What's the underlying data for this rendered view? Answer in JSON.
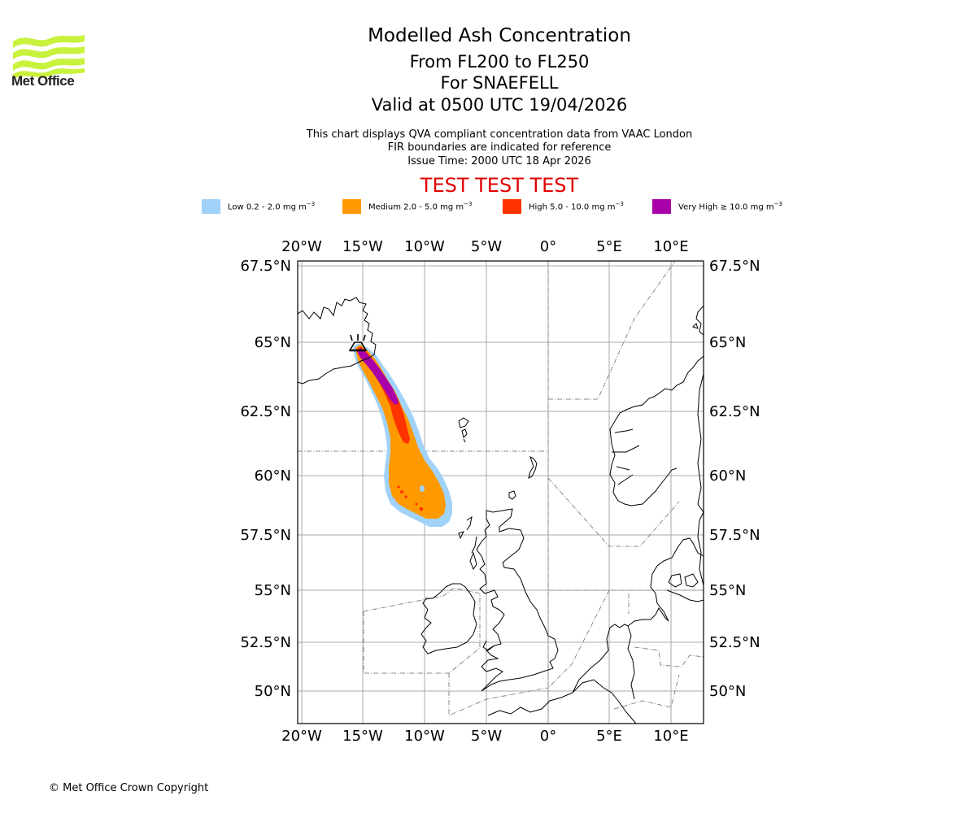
{
  "logo": {
    "text": "Met Office",
    "color": "#c8f23c"
  },
  "titles": {
    "main": "Modelled Ash Concentration",
    "levels": "From FL200 to FL250",
    "volcano": "For SNAEFELL",
    "valid": "Valid at 0500 UTC 19/04/2026"
  },
  "subtitles": {
    "line1": "This chart displays QVA compliant concentration data from VAAC London",
    "line2": "FIR boundaries are indicated for reference",
    "issue": "Issue Time: 2000 UTC 18 Apr 2026"
  },
  "test_banner": {
    "text": "TEST TEST TEST",
    "color": "#e00000"
  },
  "legend": [
    {
      "label": "Low 0.2 - 2.0 mg m",
      "exp": "−3",
      "color": "#a0d2fa"
    },
    {
      "label": "Medium 2.0 - 5.0 mg m",
      "exp": "−3",
      "color": "#ff9900"
    },
    {
      "label": "High 5.0 - 10.0 mg m",
      "exp": "−3",
      "color": "#ff3300"
    },
    {
      "label": "Very High  ≥  10.0 mg m",
      "exp": "−3",
      "color": "#aa00aa"
    }
  ],
  "map": {
    "lon_ticks": [
      "20°W",
      "15°W",
      "10°W",
      "5°W",
      "0°",
      "5°E",
      "10°E"
    ],
    "lat_ticks": [
      "67.5°N",
      "65°N",
      "62.5°N",
      "60°N",
      "57.5°N",
      "55°N",
      "52.5°N",
      "50°N"
    ],
    "volcano_marker": "volcano-icon",
    "grid_color": "#aaaaaa",
    "fir_color": "#888888"
  },
  "footer": {
    "copyright": "© Met Office Crown Copyright"
  }
}
